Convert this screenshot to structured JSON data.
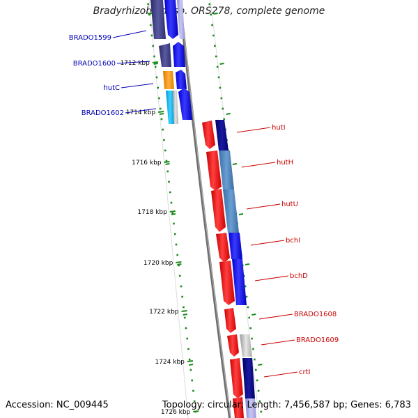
{
  "title": "Bradyrhizobium sp. ORS278, complete genome",
  "footer": {
    "accession": "Accession: NC_009445",
    "summary": "Topology: circular; Length: 7,456,587 bp; Genes: 6,783"
  },
  "ticks": [
    "1712 kbp",
    "1714 kbp",
    "1716 kbp",
    "1718 kbp",
    "1720 kbp",
    "1722 kbp",
    "1724 kbp",
    "1726 kbp"
  ],
  "left_genes": [
    "BRADO1599",
    "BRADO1600",
    "hutC",
    "BRADO1602"
  ],
  "right_genes": [
    "hutI",
    "hutH",
    "hutU",
    "bchI",
    "bchD",
    "BRADO1608",
    "BRADO1609",
    "crtI"
  ],
  "colors": {
    "left_label": "#0000b4",
    "right_label": "#c80000",
    "scale_dots": "#1a8a1a",
    "backbone": "#888888"
  }
}
